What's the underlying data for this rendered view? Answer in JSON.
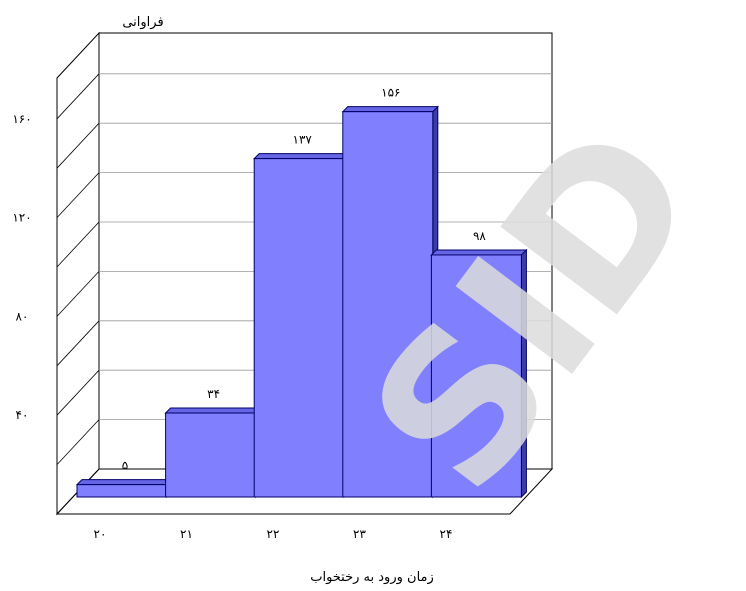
{
  "chart_data": {
    "type": "bar",
    "title": "",
    "ylabel": "فراوانی",
    "xlabel": "زمان ورود به رختخواب",
    "categories": [
      "۲۰",
      "۲۱",
      "۲۲",
      "۲۳",
      "۲۴"
    ],
    "values": [
      5,
      34,
      137,
      156,
      98
    ],
    "value_labels": [
      "۵",
      "۳۴",
      "۱۳۷",
      "۱۵۶",
      "۹۸"
    ],
    "yticks": [
      40,
      80,
      120,
      160
    ],
    "ytick_labels": [
      "۴۰",
      "۸۰",
      "۱۲۰",
      "۱۶۰"
    ],
    "ylim": [
      0,
      180
    ],
    "grid": true,
    "legend": "none",
    "bar_color": "#8080ff",
    "bar_edge_color": "#000066"
  },
  "watermark": {
    "text": "SID",
    "color": "#dddddd"
  }
}
